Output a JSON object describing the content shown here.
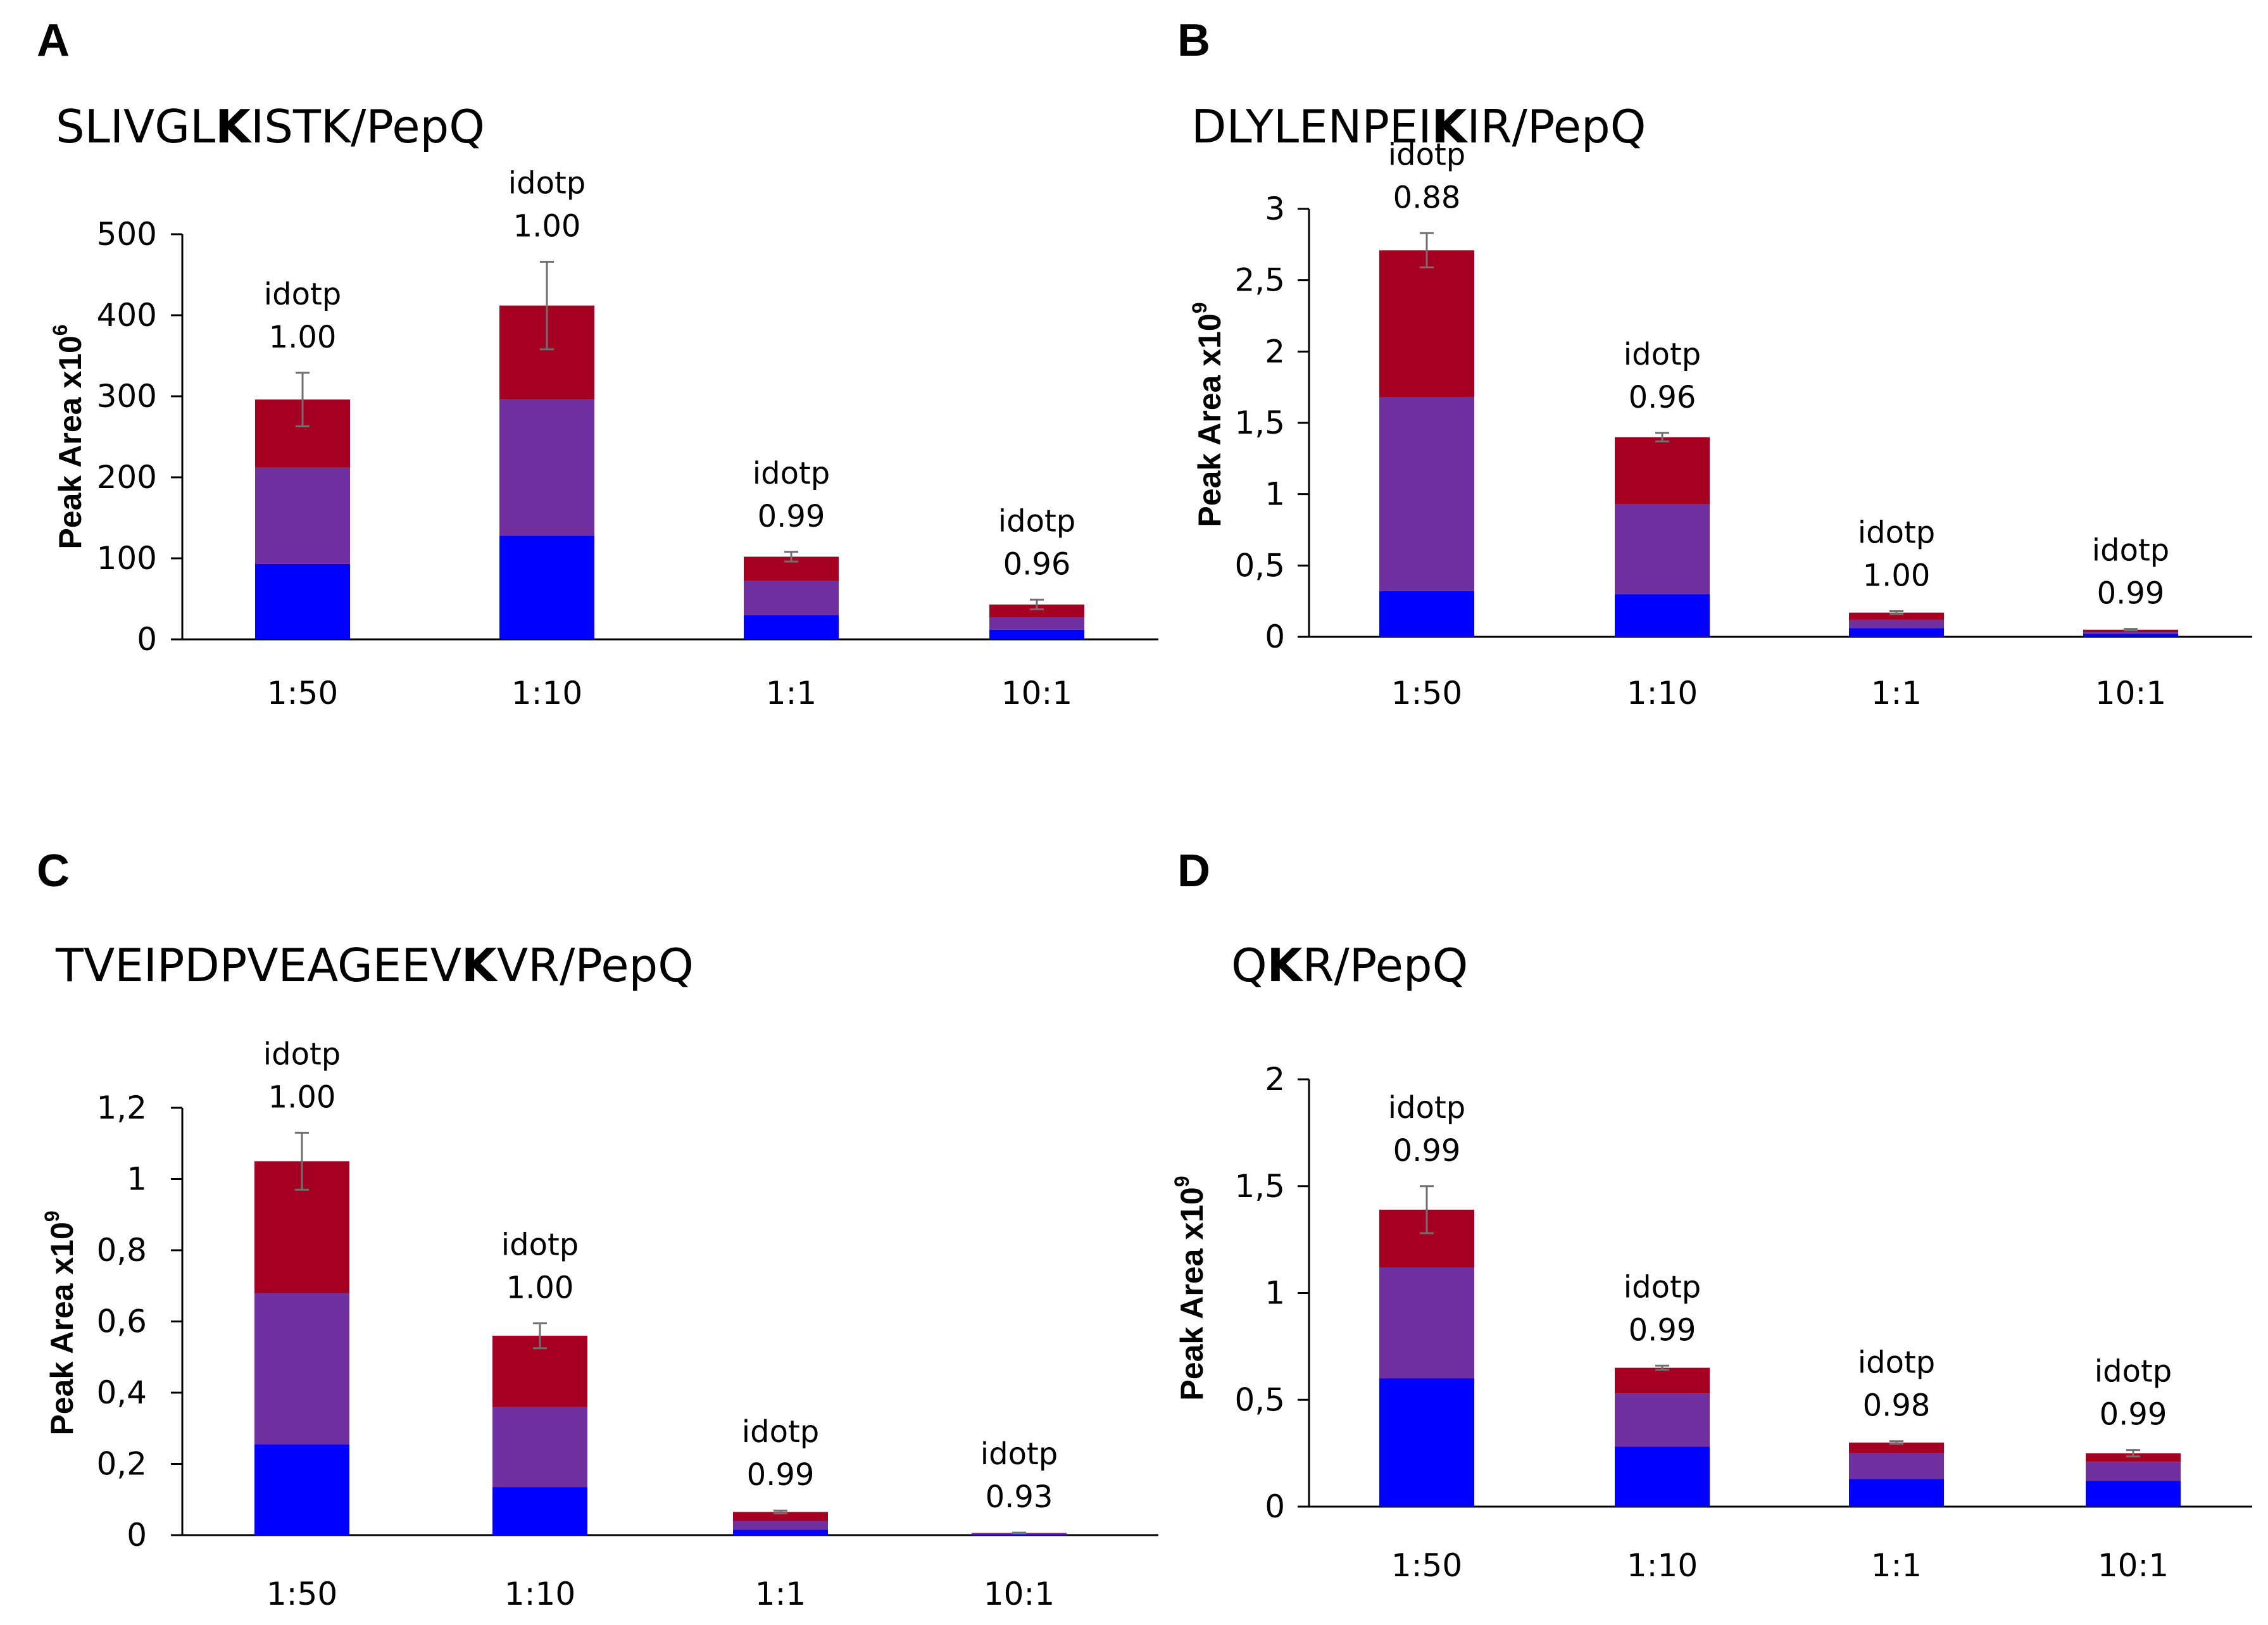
{
  "colors": {
    "bottom": "#0000FF",
    "middle": "#7030A0",
    "top": "#A50021",
    "error": "#707070"
  },
  "chart_data": [
    {
      "type": "bar",
      "stacked": true,
      "panel_letter": "A",
      "title_parts": [
        "SLIVGL",
        "K",
        "ISTK/PepQ"
      ],
      "ylabel": "Peak Area x10",
      "ylabel_exp": "6",
      "ylim": [
        0,
        500
      ],
      "yticks": [
        0,
        100,
        200,
        300,
        400,
        500
      ],
      "ytick_labels": [
        "0",
        "100",
        "200",
        "300",
        "400",
        "500"
      ],
      "categories": [
        "1:50",
        "1:10",
        "1:1",
        "10:1"
      ],
      "series": [
        {
          "name": "bottom",
          "values": [
            93,
            128,
            30,
            12
          ]
        },
        {
          "name": "middle",
          "values": [
            119,
            168,
            42,
            15
          ]
        },
        {
          "name": "top",
          "values": [
            84,
            116,
            30,
            16
          ]
        }
      ],
      "errors": [
        33,
        54,
        6,
        6
      ],
      "annotation_label": "idotp",
      "idotp": [
        "1.00",
        "1.00",
        "0.99",
        "0.96"
      ]
    },
    {
      "type": "bar",
      "stacked": true,
      "panel_letter": "B",
      "title_parts": [
        "DLYLENPEI",
        "K",
        "IR/PepQ"
      ],
      "ylabel": "Peak Area x10",
      "ylabel_exp": "9",
      "ylim": [
        0,
        3
      ],
      "yticks": [
        0,
        0.5,
        1,
        1.5,
        2,
        2.5,
        3
      ],
      "ytick_labels": [
        "0",
        "0,5",
        "1",
        "1,5",
        "2",
        "2,5",
        "3"
      ],
      "categories": [
        "1:50",
        "1:10",
        "1:1",
        "10:1"
      ],
      "series": [
        {
          "name": "bottom",
          "values": [
            0.32,
            0.3,
            0.06,
            0.02
          ]
        },
        {
          "name": "middle",
          "values": [
            1.36,
            0.63,
            0.06,
            0.015
          ]
        },
        {
          "name": "top",
          "values": [
            1.03,
            0.47,
            0.05,
            0.015
          ]
        }
      ],
      "errors": [
        0.12,
        0.03,
        0.01,
        0.005
      ],
      "annotation_label": "idotp",
      "idotp": [
        "0.88",
        "0.96",
        "1.00",
        "0.99"
      ]
    },
    {
      "type": "bar",
      "stacked": true,
      "panel_letter": "C",
      "title_parts": [
        "TVEIPDPVEAGEEV",
        "K",
        "VR/PepQ"
      ],
      "ylabel": "Peak Area x10",
      "ylabel_exp": "9",
      "ylim": [
        0,
        1.2
      ],
      "yticks": [
        0,
        0.2,
        0.4,
        0.6,
        0.8,
        1,
        1.2
      ],
      "ytick_labels": [
        "0",
        "0,2",
        "0,4",
        "0,6",
        "0,8",
        "1",
        "1,2"
      ],
      "categories": [
        "1:50",
        "1:10",
        "1:1",
        "10:1"
      ],
      "series": [
        {
          "name": "bottom",
          "values": [
            0.255,
            0.135,
            0.015,
            0.002
          ]
        },
        {
          "name": "middle",
          "values": [
            0.425,
            0.225,
            0.025,
            0.002
          ]
        },
        {
          "name": "top",
          "values": [
            0.37,
            0.2,
            0.025,
            0.002
          ]
        }
      ],
      "errors": [
        0.08,
        0.035,
        0.004,
        0.001
      ],
      "annotation_label": "idotp",
      "idotp": [
        "1.00",
        "1.00",
        "0.99",
        "0.93"
      ]
    },
    {
      "type": "bar",
      "stacked": true,
      "panel_letter": "D",
      "title_parts": [
        "Q",
        "K",
        "R/PepQ"
      ],
      "ylabel": "Peak Area x10",
      "ylabel_exp": "9",
      "ylim": [
        0,
        2
      ],
      "yticks": [
        0,
        0.5,
        1,
        1.5,
        2
      ],
      "ytick_labels": [
        "0",
        "0,5",
        "1",
        "1,5",
        "2"
      ],
      "categories": [
        "1:50",
        "1:10",
        "1:1",
        "10:1"
      ],
      "series": [
        {
          "name": "bottom",
          "values": [
            0.6,
            0.28,
            0.13,
            0.12
          ]
        },
        {
          "name": "middle",
          "values": [
            0.52,
            0.25,
            0.12,
            0.09
          ]
        },
        {
          "name": "top",
          "values": [
            0.27,
            0.12,
            0.05,
            0.04
          ]
        }
      ],
      "errors": [
        0.11,
        0.01,
        0.006,
        0.015
      ],
      "annotation_label": "idotp",
      "idotp": [
        "0.99",
        "0.99",
        "0.98",
        "0.99"
      ]
    }
  ]
}
